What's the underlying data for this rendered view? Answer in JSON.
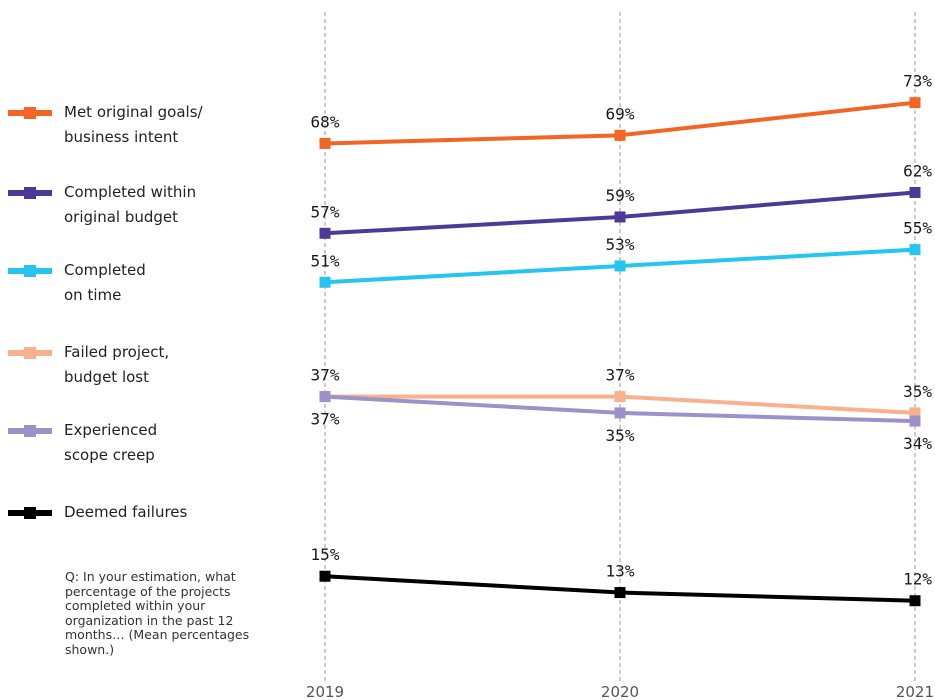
{
  "chart_data": {
    "type": "line",
    "categories": [
      "2019",
      "2020",
      "2021"
    ],
    "series": [
      {
        "name": "Met original goals/\nbusiness intent",
        "values": [
          68,
          69,
          73
        ],
        "labels": [
          "68%",
          "69%",
          "73%"
        ],
        "color": "#f26522"
      },
      {
        "name": "Completed within\noriginal budget",
        "values": [
          57,
          59,
          62
        ],
        "labels": [
          "57%",
          "59%",
          "62%"
        ],
        "color": "#4b3a97"
      },
      {
        "name": "Completed\non time",
        "values": [
          51,
          53,
          55
        ],
        "labels": [
          "51%",
          "53%",
          "55%"
        ],
        "color": "#26c4f0"
      },
      {
        "name": "Failed project,\nbudget lost",
        "values": [
          37,
          37,
          35
        ],
        "labels": [
          "37%",
          "37%",
          "35%"
        ],
        "color": "#f9b08c"
      },
      {
        "name": "Experienced\nscope creep",
        "values": [
          37,
          35,
          34
        ],
        "labels": [
          "37%",
          "35%",
          "34%"
        ],
        "color": "#9d91c9"
      },
      {
        "name": "Deemed failures",
        "values": [
          15,
          13,
          12
        ],
        "labels": [
          "15%",
          "13%",
          "12%"
        ],
        "color": "#000000"
      }
    ],
    "ylim": [
      0,
      80
    ],
    "grid": "vertical dashed gridlines at each year",
    "legend": "left"
  },
  "note": "Q: In your estimation, what percentage of the projects completed within your organization in the past 12 months… (Mean percentages shown.)"
}
